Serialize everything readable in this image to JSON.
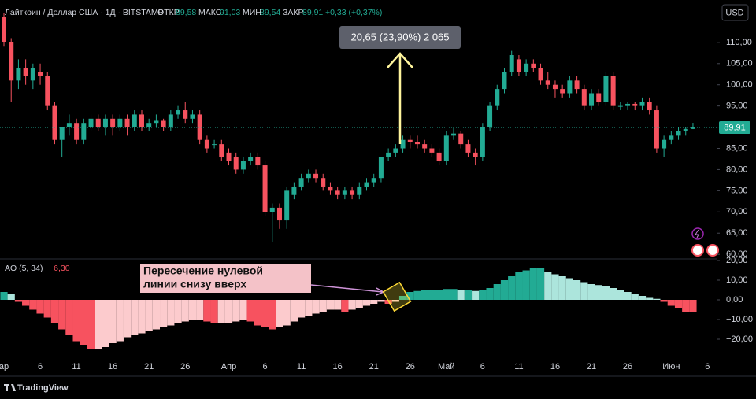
{
  "header": {
    "symbol": "Лайткоин / Доллар США · 1Д · BITSTAMP",
    "open_label": "ОТКР",
    "open": "89,58",
    "high_label": "МАКС",
    "high": "91,03",
    "low_label": "МИН",
    "low": "89,54",
    "close_label": "ЗАКР",
    "close": "89,91",
    "change": "+0,33 (+0,37%)",
    "currency": "USD",
    "brand": "TradingView"
  },
  "annotations": {
    "measure": "20,65 (23,90%) 2 065",
    "callout": [
      "Пересечение нулевой",
      "линии снизу вверх"
    ]
  },
  "chart_data": [
    {
      "type": "candlestick",
      "last_price_label": "89,91",
      "categories": [
        "ар",
        null,
        null,
        null,
        null,
        "6",
        null,
        null,
        null,
        null,
        "11",
        null,
        null,
        null,
        null,
        "16",
        null,
        null,
        null,
        null,
        "21",
        null,
        null,
        null,
        null,
        "26",
        null,
        null,
        null,
        null,
        null,
        "Апр",
        null,
        null,
        null,
        null,
        "6",
        null,
        null,
        null,
        null,
        "11",
        null,
        null,
        null,
        null,
        "16",
        null,
        null,
        null,
        null,
        "21",
        null,
        null,
        null,
        null,
        "26",
        null,
        null,
        null,
        null,
        "Май",
        null,
        null,
        null,
        null,
        "6",
        null,
        null,
        null,
        null,
        "11",
        null,
        null,
        null,
        null,
        "16",
        null,
        null,
        null,
        null,
        "21",
        null,
        null,
        null,
        null,
        "26",
        null,
        null,
        null,
        null,
        null,
        "Июн",
        null,
        null,
        null,
        null,
        "6"
      ],
      "open": [
        116,
        110,
        101,
        104,
        101,
        103,
        102,
        95,
        87,
        90,
        91,
        87,
        90,
        92,
        90,
        92,
        90,
        92,
        90,
        93,
        90,
        91,
        91.5,
        90,
        93,
        94,
        92,
        93,
        87,
        86,
        86,
        84,
        83,
        80,
        82,
        83,
        81,
        70,
        71,
        68,
        74,
        76,
        78,
        79,
        78,
        76,
        75,
        74,
        75,
        74,
        76,
        77,
        78,
        83,
        84,
        85,
        87,
        86.5,
        86,
        85,
        84,
        82,
        88,
        88.5,
        86,
        84,
        83,
        90,
        95,
        99,
        103,
        106,
        103,
        105,
        104,
        101,
        100,
        99,
        98,
        101,
        99,
        95,
        98,
        96,
        102,
        95,
        95,
        95.5,
        95,
        96,
        94,
        85,
        87,
        88,
        89,
        89.58,
        null,
        null
      ],
      "high": [
        117,
        111,
        106,
        106,
        105,
        105,
        103,
        96,
        90,
        93,
        92,
        92,
        93,
        93,
        93,
        93,
        93,
        93,
        94,
        94,
        92,
        93,
        92,
        94,
        95,
        96,
        94,
        94,
        88,
        87,
        87,
        85,
        84,
        83,
        84,
        84,
        82,
        72,
        72,
        76,
        77,
        79,
        80,
        80,
        79,
        77,
        76,
        76,
        76,
        77,
        78,
        79,
        83,
        85,
        86,
        88,
        88,
        88,
        87,
        86,
        85,
        89,
        90,
        89,
        87,
        85,
        91,
        96,
        100,
        104,
        108,
        107,
        106,
        106,
        105,
        103,
        101,
        100,
        102,
        102,
        100,
        99,
        99,
        103,
        103,
        96,
        96,
        96,
        97,
        97,
        95,
        88,
        89,
        90,
        90,
        91.03,
        null,
        null
      ],
      "low": [
        109,
        96,
        99,
        100,
        99,
        100,
        94,
        86,
        83,
        88,
        86,
        86,
        89,
        89,
        88,
        88,
        89,
        88,
        89,
        89,
        89,
        90,
        89,
        89,
        92,
        91,
        91,
        86,
        84,
        85,
        82,
        81,
        79,
        79,
        81,
        80,
        69,
        63,
        66,
        66,
        73,
        75,
        77,
        77,
        75,
        74,
        73,
        73,
        73,
        73,
        75,
        76,
        77,
        82,
        83,
        84,
        85,
        85,
        84,
        83,
        81,
        81,
        87,
        85,
        83,
        81,
        82,
        89,
        94,
        98,
        102,
        102,
        102,
        103,
        100,
        99,
        97,
        97,
        97,
        98,
        94,
        94,
        95,
        95,
        94,
        94,
        94,
        94,
        94,
        93,
        84,
        83,
        86,
        87,
        88,
        89.54,
        null,
        null
      ],
      "close": [
        110,
        101,
        104,
        102,
        104,
        102,
        95,
        87,
        90,
        91,
        87,
        91,
        92,
        90,
        92,
        90,
        92,
        90,
        93,
        90,
        91,
        91.5,
        90,
        93,
        94,
        92,
        93,
        87,
        85,
        86,
        83,
        82,
        80,
        82,
        83,
        81,
        70,
        71,
        68,
        75,
        76,
        78,
        79,
        78,
        76,
        75,
        74,
        75,
        74,
        76,
        77,
        78,
        83,
        84,
        85,
        87,
        86.5,
        86,
        85,
        84,
        82,
        88,
        88.5,
        86,
        84,
        83,
        90,
        95,
        99,
        103,
        107,
        103,
        105,
        104,
        101,
        100,
        99,
        98,
        101,
        99,
        95,
        98,
        96,
        102,
        95,
        95,
        95.5,
        95,
        96,
        94,
        85,
        87,
        88,
        89,
        89.58,
        89.91,
        null,
        null
      ],
      "up_color": "#22ab94",
      "down_color": "#f7525f",
      "ylim": [
        59.1,
        120
      ],
      "yticks": [
        {
          "value": 60,
          "label": "60,00"
        },
        {
          "value": 65,
          "label": "65,00"
        },
        {
          "value": 70,
          "label": "70,00"
        },
        {
          "value": 75,
          "label": "75,00"
        },
        {
          "value": 80,
          "label": "80,00"
        },
        {
          "value": 85,
          "label": "85,00"
        },
        {
          "value": 90,
          "label": "90,00"
        },
        {
          "value": 95,
          "label": "95,00"
        },
        {
          "value": 100,
          "label": "100,00"
        },
        {
          "value": 105,
          "label": "105,00"
        },
        {
          "value": 110,
          "label": "110,00"
        }
      ]
    },
    {
      "type": "bar",
      "name": "AO (5, 34)",
      "last_label": "−6,30",
      "values": [
        4,
        3,
        -1,
        -3,
        -5,
        -7,
        -9,
        -12,
        -15,
        -18,
        -21,
        -23,
        -25,
        -25,
        -24,
        -22,
        -21,
        -19,
        -18,
        -17,
        -16,
        -15,
        -14,
        -13,
        -12,
        -11,
        -10,
        -10,
        -11,
        -12,
        -12,
        -12,
        -11,
        -10,
        -11,
        -13,
        -14,
        -15,
        -14,
        -13,
        -11,
        -9,
        -8,
        -7,
        -6,
        -5,
        -5,
        -6,
        -5,
        -4,
        -3,
        -2,
        -1,
        -2,
        -1,
        2,
        4,
        4.5,
        5,
        5,
        5,
        5.5,
        5.5,
        5,
        5,
        4.5,
        5,
        6,
        8,
        10,
        12,
        14,
        15,
        16,
        16,
        14,
        13,
        12,
        11,
        10,
        9,
        8,
        7.5,
        7,
        6,
        5,
        4,
        3,
        2,
        1,
        0.5,
        -1,
        -3,
        -4,
        -6,
        -6.3,
        null,
        null
      ],
      "colors": {
        "rising_positive": "#22ab94",
        "falling_positive": "#ace5dc",
        "falling_negative": "#f7525f",
        "rising_negative": "#fccbcd"
      },
      "ylim": [
        -29.6,
        20.4
      ],
      "yticks": [
        {
          "value": 20,
          "label": "20,00"
        },
        {
          "value": 10,
          "label": "10,00"
        },
        {
          "value": 0,
          "label": "0,00"
        },
        {
          "value": -10,
          "label": "−10,00"
        },
        {
          "value": -20,
          "label": "−20,00"
        }
      ]
    }
  ]
}
